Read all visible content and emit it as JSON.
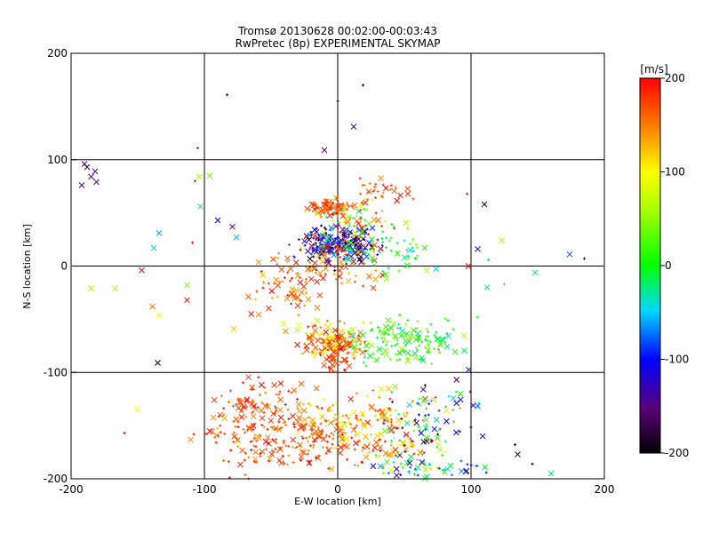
{
  "chart_data": {
    "type": "scatter",
    "title": "Tromsø 20130628 00:02:00-00:03:43",
    "subtitle": "RwPretec (8p) EXPERIMENTAL SKYMAP",
    "xlabel": "E-W location [km]",
    "ylabel": "N-S location [km]",
    "xlim": [
      -200,
      200
    ],
    "ylim": [
      -200,
      200
    ],
    "xticks": [
      "-200",
      "-100",
      "0",
      "100",
      "200"
    ],
    "yticks": [
      "-200",
      "-100",
      "0",
      "100",
      "200"
    ],
    "grid": true,
    "colorbar": {
      "label": "[m/s]",
      "range": [
        -200,
        200
      ],
      "ticks": [
        "200",
        "100",
        "0",
        "-100",
        "-200"
      ],
      "colormap": "black-purple-blue-cyan-green-yellow-orange-red"
    },
    "marker_types": [
      "x",
      "+"
    ],
    "points": [
      {
        "x": -83,
        "y": 161,
        "v": -200,
        "m": "+"
      },
      {
        "x": 0,
        "y": 155,
        "v": -200,
        "m": "+"
      },
      {
        "x": 19,
        "y": 170,
        "v": -200,
        "m": "+"
      },
      {
        "x": -10,
        "y": 109,
        "v": -150,
        "m": "x"
      },
      {
        "x": 12,
        "y": 131,
        "v": -150,
        "m": "x"
      },
      {
        "x": -105,
        "y": 111,
        "v": 200,
        "m": "+"
      },
      {
        "x": -190,
        "y": 96,
        "v": -150,
        "m": "x"
      },
      {
        "x": -188,
        "y": 93,
        "v": -170,
        "m": "x"
      },
      {
        "x": -182,
        "y": 89,
        "v": -140,
        "m": "x"
      },
      {
        "x": -185,
        "y": 84,
        "v": -150,
        "m": "x"
      },
      {
        "x": -181,
        "y": 79,
        "v": -150,
        "m": "x"
      },
      {
        "x": -192,
        "y": 76,
        "v": -140,
        "m": "x"
      },
      {
        "x": -104,
        "y": 84,
        "v": 60,
        "m": "x"
      },
      {
        "x": -96,
        "y": 85,
        "v": 40,
        "m": "x"
      },
      {
        "x": -107,
        "y": 80,
        "v": 200,
        "m": "+"
      },
      {
        "x": -103,
        "y": 56,
        "v": -20,
        "m": "x"
      },
      {
        "x": -90,
        "y": 43,
        "v": -100,
        "m": "x"
      },
      {
        "x": -79,
        "y": 37,
        "v": -150,
        "m": "x"
      },
      {
        "x": -76,
        "y": 27,
        "v": -60,
        "m": "x"
      },
      {
        "x": -134,
        "y": 31,
        "v": -60,
        "m": "x"
      },
      {
        "x": -138,
        "y": 17,
        "v": -40,
        "m": "x"
      },
      {
        "x": -109,
        "y": 22,
        "v": 200,
        "m": "+"
      },
      {
        "x": -147,
        "y": -4,
        "v": 200,
        "m": "x"
      },
      {
        "x": -185,
        "y": -21,
        "v": 60,
        "m": "x"
      },
      {
        "x": -167,
        "y": -21,
        "v": 60,
        "m": "x"
      },
      {
        "x": -113,
        "y": -18,
        "v": 40,
        "m": "x"
      },
      {
        "x": -113,
        "y": -32,
        "v": 200,
        "m": "x"
      },
      {
        "x": -139,
        "y": -38,
        "v": 150,
        "m": "x"
      },
      {
        "x": -134,
        "y": -46,
        "v": 100,
        "m": "x"
      },
      {
        "x": -78,
        "y": -59,
        "v": 120,
        "m": "x"
      },
      {
        "x": -135,
        "y": -91,
        "v": -200,
        "m": "x"
      },
      {
        "x": -150,
        "y": -135,
        "v": 100,
        "m": "x"
      },
      {
        "x": -160,
        "y": -157,
        "v": 200,
        "m": "+"
      },
      {
        "x": -108,
        "y": -158,
        "v": 200,
        "m": "+"
      },
      {
        "x": 110,
        "y": 58,
        "v": -200,
        "m": "x"
      },
      {
        "x": 97,
        "y": 68,
        "v": 200,
        "m": "+"
      },
      {
        "x": 123,
        "y": 24,
        "v": 60,
        "m": "x"
      },
      {
        "x": 105,
        "y": 16,
        "v": -140,
        "m": "x"
      },
      {
        "x": 113,
        "y": 6,
        "v": -40,
        "m": "+"
      },
      {
        "x": 98,
        "y": 0,
        "v": 200,
        "m": "x"
      },
      {
        "x": 148,
        "y": -6,
        "v": -20,
        "m": "x"
      },
      {
        "x": 174,
        "y": 11,
        "v": -80,
        "m": "x"
      },
      {
        "x": 185,
        "y": 7,
        "v": -100,
        "m": "+"
      },
      {
        "x": 112,
        "y": -20,
        "v": -20,
        "m": "x"
      },
      {
        "x": 125,
        "y": -17,
        "v": 20,
        "m": "+"
      },
      {
        "x": 160,
        "y": -195,
        "v": -20,
        "m": "x"
      },
      {
        "x": 146,
        "y": -186,
        "v": -200,
        "m": "+"
      },
      {
        "x": 133,
        "y": -168,
        "v": -200,
        "m": "+"
      },
      {
        "x": 135,
        "y": -177,
        "v": -200,
        "m": "x"
      }
    ],
    "clusters": [
      {
        "cx": 0,
        "cy": 20,
        "sx": 18,
        "sy": 12,
        "n": 230,
        "vmin": -200,
        "vmax": -60
      },
      {
        "cx": -5,
        "cy": 55,
        "sx": 12,
        "sy": 6,
        "n": 80,
        "vmin": 140,
        "vmax": 200
      },
      {
        "cx": 10,
        "cy": 40,
        "sx": 20,
        "sy": 15,
        "n": 70,
        "vmin": -40,
        "vmax": 200
      },
      {
        "cx": 30,
        "cy": 70,
        "sx": 15,
        "sy": 8,
        "n": 30,
        "vmin": 140,
        "vmax": 200
      },
      {
        "cx": -10,
        "cy": 0,
        "sx": 30,
        "sy": 18,
        "n": 90,
        "vmin": 120,
        "vmax": 200
      },
      {
        "cx": 40,
        "cy": 15,
        "sx": 25,
        "sy": 15,
        "n": 60,
        "vmin": -40,
        "vmax": 60
      },
      {
        "cx": -40,
        "cy": -25,
        "sx": 25,
        "sy": 15,
        "n": 40,
        "vmin": 120,
        "vmax": 200
      },
      {
        "cx": -5,
        "cy": -70,
        "sx": 20,
        "sy": 12,
        "n": 140,
        "vmin": 60,
        "vmax": 200
      },
      {
        "cx": 50,
        "cy": -70,
        "sx": 28,
        "sy": 14,
        "n": 150,
        "vmin": -30,
        "vmax": 70
      },
      {
        "cx": 0,
        "cy": -85,
        "sx": 8,
        "sy": 12,
        "n": 40,
        "vmin": 160,
        "vmax": 200
      },
      {
        "cx": 80,
        "cy": -130,
        "sx": 20,
        "sy": 20,
        "n": 35,
        "vmin": -200,
        "vmax": 40
      },
      {
        "cx": -40,
        "cy": -160,
        "sx": 40,
        "sy": 25,
        "n": 230,
        "vmin": 130,
        "vmax": 200
      },
      {
        "cx": 25,
        "cy": -155,
        "sx": 35,
        "sy": 25,
        "n": 180,
        "vmin": 80,
        "vmax": 200
      },
      {
        "cx": 60,
        "cy": -160,
        "sx": 25,
        "sy": 25,
        "n": 70,
        "vmin": -200,
        "vmax": 100
      },
      {
        "cx": 70,
        "cy": -190,
        "sx": 30,
        "sy": 8,
        "n": 40,
        "vmin": -120,
        "vmax": 60
      },
      {
        "cx": -60,
        "cy": -130,
        "sx": 25,
        "sy": 20,
        "n": 50,
        "vmin": 150,
        "vmax": 200
      }
    ]
  }
}
